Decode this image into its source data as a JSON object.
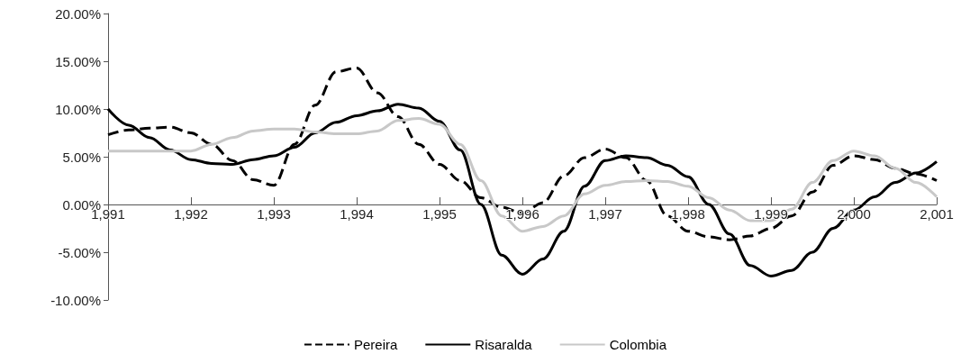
{
  "chart_data": {
    "type": "line",
    "x": [
      1991,
      1991.25,
      1991.5,
      1991.75,
      1992,
      1992.25,
      1992.5,
      1992.75,
      1993,
      1993.25,
      1993.5,
      1993.75,
      1994,
      1994.25,
      1994.5,
      1994.75,
      1995,
      1995.25,
      1995.5,
      1995.75,
      1996,
      1996.25,
      1996.5,
      1996.75,
      1997,
      1997.25,
      1997.5,
      1997.75,
      1998,
      1998.25,
      1998.5,
      1998.75,
      1999,
      1999.25,
      1999.5,
      1999.75,
      2000,
      2000.25,
      2000.5,
      2000.75,
      2001
    ],
    "series": [
      {
        "name": "Pereira",
        "color": "#000000",
        "line_style": "dashed",
        "values": [
          7.3,
          7.8,
          8.0,
          8.1,
          7.5,
          6.3,
          4.6,
          2.6,
          2.0,
          6.3,
          10.4,
          13.9,
          14.3,
          11.7,
          9.2,
          6.3,
          4.2,
          2.5,
          0.7,
          -0.3,
          -0.9,
          0.2,
          3.0,
          4.9,
          5.8,
          4.9,
          2.5,
          -1.2,
          -2.8,
          -3.4,
          -3.7,
          -3.3,
          -2.5,
          -1.2,
          1.3,
          4.1,
          5.1,
          4.7,
          3.8,
          3.2,
          2.5
        ]
      },
      {
        "name": "Risaralda",
        "color": "#000000",
        "line_style": "solid",
        "values": [
          10.0,
          8.3,
          7.0,
          5.7,
          4.7,
          4.3,
          4.2,
          4.7,
          5.1,
          6.0,
          7.5,
          8.6,
          9.3,
          9.8,
          10.5,
          10.1,
          8.7,
          5.7,
          0.0,
          -5.3,
          -7.3,
          -5.7,
          -2.8,
          1.9,
          4.6,
          5.1,
          4.9,
          4.1,
          2.9,
          0.0,
          -3.1,
          -6.4,
          -7.5,
          -6.9,
          -5.0,
          -2.5,
          -0.6,
          0.8,
          2.3,
          3.3,
          4.5
        ]
      },
      {
        "name": "Colombia",
        "color": "#c8c8c8",
        "line_style": "solid",
        "values": [
          5.6,
          5.6,
          5.6,
          5.6,
          5.6,
          6.3,
          7.0,
          7.7,
          7.9,
          7.9,
          7.6,
          7.4,
          7.4,
          7.7,
          8.8,
          9.0,
          8.4,
          6.3,
          2.5,
          -1.2,
          -2.8,
          -2.3,
          -1.2,
          1.1,
          2.0,
          2.4,
          2.5,
          2.4,
          1.9,
          0.7,
          -0.6,
          -1.7,
          -1.7,
          -0.5,
          2.3,
          4.6,
          5.6,
          5.1,
          3.8,
          2.3,
          0.8
        ]
      }
    ],
    "xlim": [
      1991,
      2001
    ],
    "xticks": [
      {
        "value": 1991,
        "label": "1,991"
      },
      {
        "value": 1992,
        "label": "1,992"
      },
      {
        "value": 1993,
        "label": "1,993"
      },
      {
        "value": 1994,
        "label": "1,994"
      },
      {
        "value": 1995,
        "label": "1,995"
      },
      {
        "value": 1996,
        "label": "1,996"
      },
      {
        "value": 1997,
        "label": "1,997"
      },
      {
        "value": 1998,
        "label": "1,998"
      },
      {
        "value": 1999,
        "label": "1,999"
      },
      {
        "value": 2000,
        "label": "2,000"
      },
      {
        "value": 2001,
        "label": "2,001"
      }
    ],
    "ylim": [
      -10,
      20
    ],
    "yticks": [
      {
        "value": -10,
        "label": "-10.00%"
      },
      {
        "value": -5,
        "label": "-5.00%"
      },
      {
        "value": 0,
        "label": "0.00%"
      },
      {
        "value": 5,
        "label": "5.00%"
      },
      {
        "value": 10,
        "label": "10.00%"
      },
      {
        "value": 15,
        "label": "15.00%"
      },
      {
        "value": 20,
        "label": "20.00%"
      }
    ],
    "grid": false,
    "legend": "bottom",
    "marker": "none"
  }
}
